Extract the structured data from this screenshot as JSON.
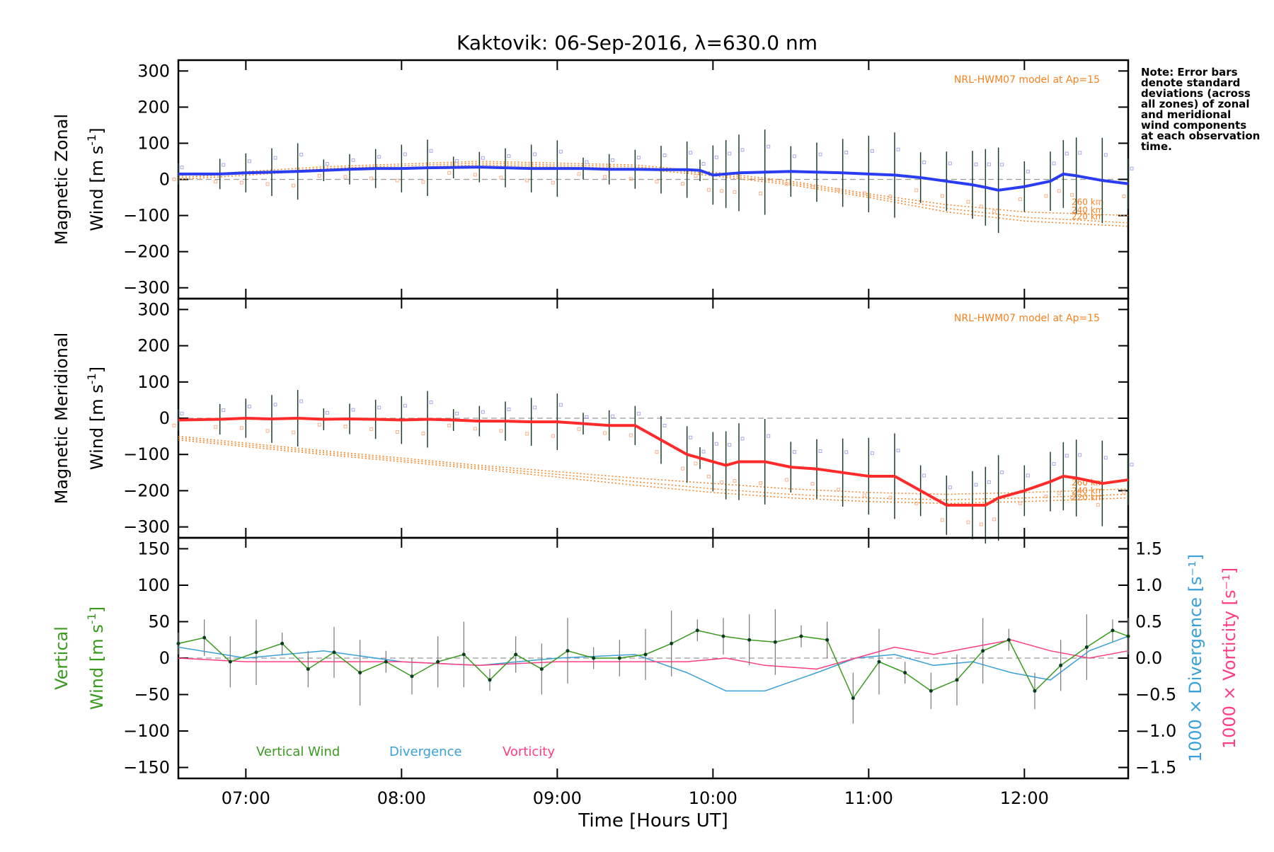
{
  "title": "Kaktovik: 06-Sep-2016, λ=630.0 nm",
  "note": "Note: Error bars denote standard deviations (across all zones) of zonal and meridional wind components at each observation time.",
  "colors": {
    "zonal": "#2a3cf0",
    "meridional": "#ff2a2a",
    "model": "#f5821f",
    "vertical": "#3a9a1f",
    "divergence": "#3aa0d8",
    "vorticity": "#ff3c84",
    "errorbar": "#1e3d2a",
    "grey": "#9a9a9a"
  },
  "x_axis": {
    "label": "Time [Hours UT]",
    "range": [
      "06:34",
      "12:40"
    ],
    "ticks": [
      "07:00",
      "08:00",
      "09:00",
      "10:00",
      "11:00",
      "12:00"
    ]
  },
  "chart_data": [
    {
      "id": "zonal",
      "type": "line",
      "ylabel": "Magnetic Zonal Wind [m s⁻¹]",
      "ylabel_line1": "Magnetic Zonal",
      "ylabel_line2": "Wind [m s",
      "ylim": [
        -330,
        330
      ],
      "yticks": [
        300,
        200,
        100,
        0,
        -100,
        -200,
        -300
      ],
      "model_label": "NRL-HWM07 model at Ap=15",
      "model_alt_labels": [
        "260 km",
        "240 km",
        "220 km"
      ],
      "series": [
        {
          "name": "Magnetic Zonal Wind",
          "x": [
            "06:34",
            "06:50",
            "07:00",
            "07:10",
            "07:20",
            "07:30",
            "07:40",
            "07:50",
            "08:00",
            "08:10",
            "08:20",
            "08:30",
            "08:40",
            "08:50",
            "09:00",
            "09:10",
            "09:20",
            "09:30",
            "09:40",
            "09:50",
            "09:55",
            "10:00",
            "10:05",
            "10:10",
            "10:20",
            "10:30",
            "10:40",
            "10:50",
            "11:00",
            "11:10",
            "11:20",
            "11:30",
            "11:40",
            "11:45",
            "11:50",
            "12:00",
            "12:10",
            "12:15",
            "12:20",
            "12:30",
            "12:40"
          ],
          "y": [
            15,
            15,
            18,
            20,
            22,
            25,
            28,
            30,
            30,
            32,
            33,
            34,
            32,
            30,
            30,
            30,
            28,
            28,
            27,
            27,
            25,
            12,
            15,
            18,
            20,
            22,
            20,
            18,
            15,
            12,
            5,
            -5,
            -15,
            -22,
            -30,
            -20,
            -5,
            15,
            10,
            -3,
            -12
          ]
        }
      ],
      "model_series": [
        {
          "name": "260 km",
          "x": [
            "06:34",
            "07:30",
            "08:30",
            "09:30",
            "10:00",
            "10:30",
            "11:00",
            "11:30",
            "12:00",
            "12:40"
          ],
          "y": [
            10,
            35,
            50,
            40,
            20,
            -5,
            -40,
            -70,
            -90,
            -100
          ]
        },
        {
          "name": "240 km",
          "x": [
            "06:34",
            "07:30",
            "08:30",
            "09:30",
            "10:00",
            "10:30",
            "11:00",
            "11:30",
            "12:00",
            "12:40"
          ],
          "y": [
            5,
            30,
            45,
            35,
            15,
            -10,
            -45,
            -80,
            -105,
            -120
          ]
        },
        {
          "name": "220 km",
          "x": [
            "06:34",
            "07:30",
            "08:30",
            "09:30",
            "10:00",
            "10:30",
            "11:00",
            "11:30",
            "12:00",
            "12:40"
          ],
          "y": [
            0,
            25,
            40,
            30,
            10,
            -15,
            -50,
            -90,
            -115,
            -130
          ]
        }
      ]
    },
    {
      "id": "meridional",
      "type": "line",
      "ylabel": "Magnetic Meridional Wind [m s⁻¹]",
      "ylabel_line1": "Magnetic Meridional",
      "ylabel_line2": "Wind [m s",
      "ylim": [
        -330,
        330
      ],
      "yticks": [
        300,
        200,
        100,
        0,
        -100,
        -200,
        -300
      ],
      "model_label": "NRL-HWM07 model at Ap=15",
      "model_alt_labels": [
        "260 km",
        "240 km",
        "220 km"
      ],
      "series": [
        {
          "name": "Magnetic Meridional Wind",
          "x": [
            "06:34",
            "06:50",
            "07:00",
            "07:10",
            "07:20",
            "07:30",
            "07:40",
            "07:50",
            "08:00",
            "08:10",
            "08:20",
            "08:30",
            "08:40",
            "08:50",
            "09:00",
            "09:10",
            "09:20",
            "09:30",
            "09:40",
            "09:50",
            "09:55",
            "10:00",
            "10:05",
            "10:10",
            "10:20",
            "10:30",
            "10:40",
            "10:50",
            "11:00",
            "11:10",
            "11:20",
            "11:30",
            "11:40",
            "11:45",
            "11:50",
            "12:00",
            "12:10",
            "12:15",
            "12:20",
            "12:30",
            "12:40"
          ],
          "y": [
            -5,
            -3,
            0,
            -2,
            0,
            -3,
            -2,
            -3,
            -5,
            -3,
            -5,
            -8,
            -8,
            -10,
            -10,
            -15,
            -20,
            -20,
            -60,
            -100,
            -110,
            -120,
            -130,
            -120,
            -120,
            -135,
            -140,
            -150,
            -160,
            -160,
            -200,
            -240,
            -240,
            -240,
            -220,
            -200,
            -175,
            -160,
            -165,
            -180,
            -170
          ]
        }
      ],
      "model_series": [
        {
          "name": "260 km",
          "x": [
            "06:34",
            "07:30",
            "08:30",
            "09:30",
            "10:00",
            "10:30",
            "11:00",
            "11:30",
            "12:00",
            "12:40"
          ],
          "y": [
            -50,
            -90,
            -130,
            -165,
            -180,
            -195,
            -205,
            -210,
            -205,
            -195
          ]
        },
        {
          "name": "240 km",
          "x": [
            "06:34",
            "07:30",
            "08:30",
            "09:30",
            "10:00",
            "10:30",
            "11:00",
            "11:30",
            "12:00",
            "12:40"
          ],
          "y": [
            -55,
            -95,
            -135,
            -175,
            -195,
            -210,
            -220,
            -225,
            -220,
            -210
          ]
        },
        {
          "name": "220 km",
          "x": [
            "06:34",
            "07:30",
            "08:30",
            "09:30",
            "10:00",
            "10:30",
            "11:00",
            "11:30",
            "12:00",
            "12:40"
          ],
          "y": [
            -60,
            -100,
            -140,
            -185,
            -205,
            -220,
            -230,
            -235,
            -230,
            -220
          ]
        }
      ]
    },
    {
      "id": "vertical",
      "type": "line",
      "ylabel": "Vertical Wind [m s⁻¹]",
      "ylabel_line1": "Vertical",
      "ylabel_line2": "Wind [m s",
      "ylim": [
        -165,
        165
      ],
      "yticks": [
        150,
        100,
        50,
        0,
        -50,
        -100,
        -150
      ],
      "y2lim": [
        -1.65,
        1.65
      ],
      "y2ticks": [
        "1.5",
        "1.0",
        "0.5",
        "0.0",
        "-0.5",
        "-1.0",
        "-1.5"
      ],
      "y2label_a": "1000 × Divergence [s⁻¹]",
      "y2label_b": "1000 × Vorticity [s⁻¹]",
      "legend": [
        "Vertical Wind",
        "Divergence",
        "Vorticity"
      ],
      "series": [
        {
          "name": "Vertical Wind",
          "x": [
            "06:34",
            "06:44",
            "06:54",
            "07:04",
            "07:14",
            "07:24",
            "07:34",
            "07:44",
            "07:54",
            "08:04",
            "08:14",
            "08:24",
            "08:34",
            "08:44",
            "08:54",
            "09:04",
            "09:14",
            "09:24",
            "09:34",
            "09:44",
            "09:54",
            "10:04",
            "10:14",
            "10:24",
            "10:34",
            "10:44",
            "10:54",
            "11:04",
            "11:14",
            "11:24",
            "11:34",
            "11:44",
            "11:54",
            "12:04",
            "12:14",
            "12:24",
            "12:34",
            "12:40"
          ],
          "y": [
            20,
            28,
            -5,
            8,
            20,
            -15,
            8,
            -20,
            -5,
            -25,
            -5,
            5,
            -30,
            5,
            -15,
            10,
            0,
            0,
            5,
            20,
            38,
            30,
            25,
            22,
            30,
            25,
            -55,
            -5,
            -20,
            -45,
            -30,
            10,
            25,
            -45,
            -10,
            15,
            38,
            30
          ]
        },
        {
          "name": "Divergence",
          "x": [
            "06:34",
            "07:00",
            "07:30",
            "08:00",
            "08:30",
            "09:00",
            "09:30",
            "09:50",
            "10:05",
            "10:20",
            "10:40",
            "10:55",
            "11:10",
            "11:25",
            "11:40",
            "11:55",
            "12:10",
            "12:25",
            "12:40"
          ],
          "y": [
            0.15,
            0.0,
            0.1,
            -0.05,
            -0.1,
            0.0,
            0.05,
            -0.2,
            -0.45,
            -0.45,
            -0.2,
            0.0,
            0.05,
            -0.1,
            -0.05,
            -0.2,
            -0.3,
            0.1,
            0.3
          ]
        },
        {
          "name": "Vorticity",
          "x": [
            "06:34",
            "07:00",
            "07:30",
            "08:00",
            "08:30",
            "09:00",
            "09:30",
            "09:50",
            "10:05",
            "10:20",
            "10:40",
            "10:55",
            "11:10",
            "11:25",
            "11:40",
            "11:55",
            "12:10",
            "12:25",
            "12:40"
          ],
          "y": [
            0.0,
            -0.05,
            -0.05,
            -0.05,
            -0.1,
            -0.05,
            -0.05,
            -0.05,
            0.0,
            -0.1,
            -0.15,
            0.0,
            0.15,
            0.05,
            0.15,
            0.25,
            0.1,
            0.0,
            0.1
          ]
        }
      ]
    }
  ]
}
